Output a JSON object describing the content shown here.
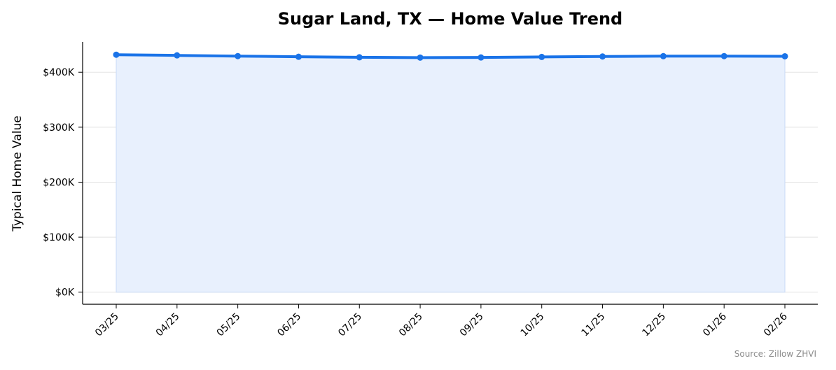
{
  "chart_data": {
    "type": "area",
    "title": "Sugar Land, TX — Home Value Trend",
    "xlabel": "",
    "ylabel": "Typical Home Value",
    "categories": [
      "03/25",
      "04/25",
      "05/25",
      "06/25",
      "07/25",
      "08/25",
      "09/25",
      "10/25",
      "11/25",
      "12/25",
      "01/26",
      "02/26"
    ],
    "series": [
      {
        "values": [
          431800,
          430600,
          429300,
          428100,
          427100,
          426600,
          426800,
          427800,
          428600,
          429200,
          429300,
          429000
        ]
      }
    ],
    "ylim": [
      -22000,
      455000
    ],
    "yticks": [
      0,
      100000,
      200000,
      300000,
      400000
    ],
    "ytick_labels": [
      "$0K",
      "$100K",
      "$200K",
      "$300K",
      "$400K"
    ],
    "grid": "horizontal",
    "legend": "none",
    "source": "Source: Zillow ZHVI",
    "colors": {
      "line": "#1a73e8",
      "fill": "#e8f0fd",
      "grid": "#e3e3e3",
      "axis": "#000000"
    }
  }
}
